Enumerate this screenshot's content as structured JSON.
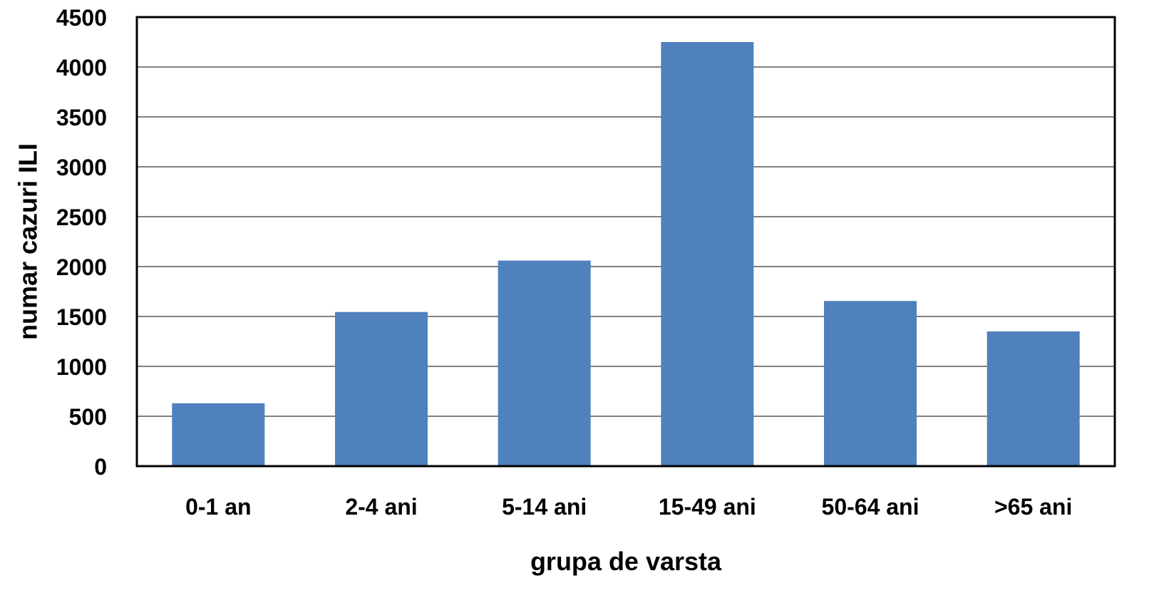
{
  "chart_data": {
    "type": "bar",
    "title": "",
    "xlabel": "grupa de varsta",
    "ylabel": "numar cazuri ILI",
    "categories": [
      "0-1 an",
      "2-4 ani",
      "5-14 ani",
      "15-49 ani",
      "50-64 ani",
      ">65 ani"
    ],
    "values": [
      630,
      1545,
      2060,
      4250,
      1655,
      1350
    ],
    "ylim": [
      0,
      4500
    ],
    "yticks": [
      0,
      500,
      1000,
      1500,
      2000,
      2500,
      3000,
      3500,
      4000,
      4500
    ],
    "grid": true,
    "legend": "none",
    "bar_color": "#4f81bd",
    "grid_color": "#808080",
    "axis_color": "#000000"
  }
}
